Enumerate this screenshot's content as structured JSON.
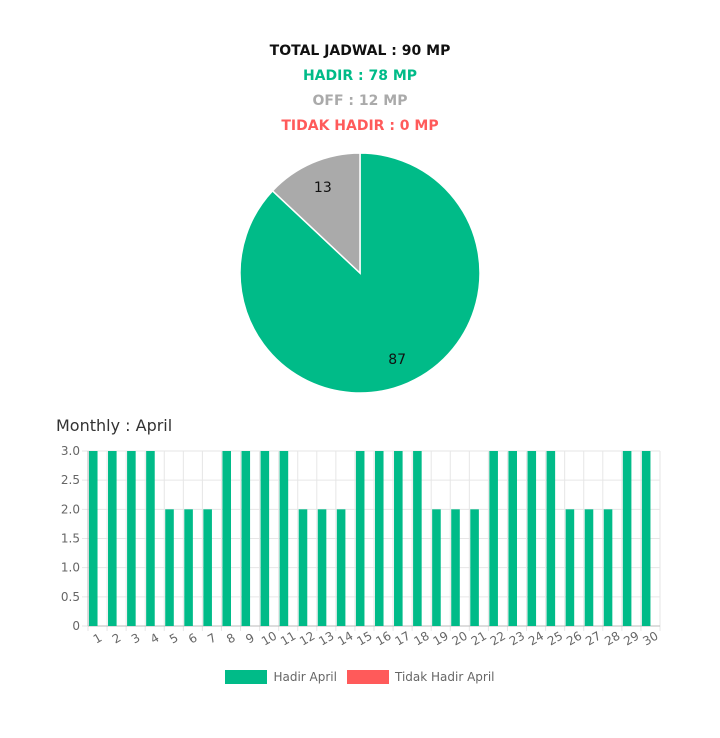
{
  "summary": {
    "total": "TOTAL JADWAL : 90 MP",
    "hadir": "HADIR : 78 MP",
    "off": "OFF : 12 MP",
    "tidak_hadir": "TIDAK HADIR : 0 MP"
  },
  "colors": {
    "hadir": "#00bb88",
    "off": "#aaaaaa",
    "tidak_hadir": "#ff5a5a"
  },
  "monthly_title": "Monthly : April",
  "chart_data": [
    {
      "type": "pie",
      "slices": [
        {
          "label": "87",
          "value": 87,
          "color": "#00bb88"
        },
        {
          "label": "13",
          "value": 13,
          "color": "#aaaaaa"
        }
      ]
    },
    {
      "type": "bar",
      "categories": [
        "1",
        "2",
        "3",
        "4",
        "5",
        "6",
        "7",
        "8",
        "9",
        "10",
        "11",
        "12",
        "13",
        "14",
        "15",
        "16",
        "17",
        "18",
        "19",
        "20",
        "21",
        "22",
        "23",
        "24",
        "25",
        "26",
        "27",
        "28",
        "29",
        "30"
      ],
      "series": [
        {
          "name": "Hadir April",
          "color": "#00bb88",
          "values": [
            3,
            3,
            3,
            3,
            2,
            2,
            2,
            3,
            3,
            3,
            3,
            2,
            2,
            2,
            3,
            3,
            3,
            3,
            2,
            2,
            2,
            3,
            3,
            3,
            3,
            2,
            2,
            2,
            3,
            3
          ]
        },
        {
          "name": "Tidak Hadir April",
          "color": "#ff5a5a",
          "values": [
            0,
            0,
            0,
            0,
            0,
            0,
            0,
            0,
            0,
            0,
            0,
            0,
            0,
            0,
            0,
            0,
            0,
            0,
            0,
            0,
            0,
            0,
            0,
            0,
            0,
            0,
            0,
            0,
            0,
            0
          ]
        }
      ],
      "ylim": [
        0,
        3
      ],
      "yticks": [
        "0",
        "0.5",
        "1.0",
        "1.5",
        "2.0",
        "2.5",
        "3.0"
      ],
      "grid": true,
      "legend_position": "bottom"
    }
  ]
}
